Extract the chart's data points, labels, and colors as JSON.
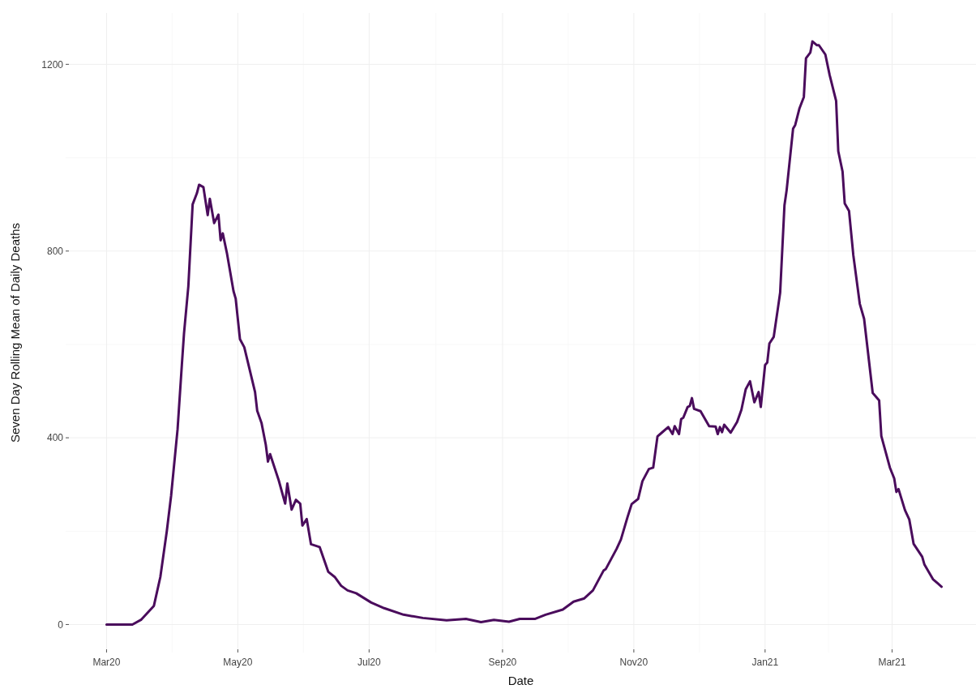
{
  "chart_data": {
    "type": "line",
    "xlabel": "Date",
    "ylabel": "Seven Day Rolling Mean of Daily Deaths",
    "xlim": [
      "2020-02-11",
      "2021-04-09"
    ],
    "ylim": [
      -60,
      1310
    ],
    "xticks": [
      {
        "value": "2020-03-01",
        "label": "Mar20"
      },
      {
        "value": "2020-05-01",
        "label": "May20"
      },
      {
        "value": "2020-07-01",
        "label": "Jul20"
      },
      {
        "value": "2020-09-01",
        "label": "Sep20"
      },
      {
        "value": "2020-11-01",
        "label": "Nov20"
      },
      {
        "value": "2021-01-01",
        "label": "Jan21"
      },
      {
        "value": "2021-03-01",
        "label": "Mar21"
      }
    ],
    "yticks": [
      0,
      400,
      800,
      1200
    ],
    "grid": true,
    "series": [
      {
        "color": "#4a0c5c",
        "x": [
          "2020-03-01",
          "2020-03-13",
          "2020-03-17",
          "2020-03-23",
          "2020-03-26",
          "2020-03-29",
          "2020-03-31",
          "2020-04-03",
          "2020-04-05",
          "2020-04-06",
          "2020-04-08",
          "2020-04-10",
          "2020-04-12",
          "2020-04-13",
          "2020-04-15",
          "2020-04-17",
          "2020-04-18",
          "2020-04-20",
          "2020-04-22",
          "2020-04-23",
          "2020-04-24",
          "2020-04-26",
          "2020-04-29",
          "2020-04-30",
          "2020-05-02",
          "2020-05-04",
          "2020-05-09",
          "2020-05-10",
          "2020-05-12",
          "2020-05-14",
          "2020-05-15",
          "2020-05-16",
          "2020-05-20",
          "2020-05-23",
          "2020-05-24",
          "2020-05-26",
          "2020-05-28",
          "2020-05-30",
          "2020-05-31",
          "2020-06-02",
          "2020-06-04",
          "2020-06-08",
          "2020-06-12",
          "2020-06-15",
          "2020-06-18",
          "2020-06-21",
          "2020-06-25",
          "2020-07-02",
          "2020-07-08",
          "2020-07-17",
          "2020-07-26",
          "2020-08-06",
          "2020-08-15",
          "2020-08-22",
          "2020-08-28",
          "2020-09-04",
          "2020-09-09",
          "2020-09-16",
          "2020-09-21",
          "2020-09-29",
          "2020-10-04",
          "2020-10-09",
          "2020-10-13",
          "2020-10-18",
          "2020-10-19",
          "2020-10-24",
          "2020-10-26",
          "2020-10-29",
          "2020-10-31",
          "2020-11-03",
          "2020-11-05",
          "2020-11-08",
          "2020-11-10",
          "2020-11-12",
          "2020-11-14",
          "2020-11-17",
          "2020-11-19",
          "2020-11-20",
          "2020-11-22",
          "2020-11-23",
          "2020-11-24",
          "2020-11-26",
          "2020-11-27",
          "2020-11-28",
          "2020-11-29",
          "2020-12-02",
          "2020-12-06",
          "2020-12-09",
          "2020-12-10",
          "2020-12-11",
          "2020-12-12",
          "2020-12-13",
          "2020-12-16",
          "2020-12-19",
          "2020-12-21",
          "2020-12-23",
          "2020-12-25",
          "2020-12-27",
          "2020-12-29",
          "2020-12-30",
          "2021-01-01",
          "2021-01-02",
          "2021-01-03",
          "2021-01-05",
          "2021-01-07",
          "2021-01-08",
          "2021-01-10",
          "2021-01-11",
          "2021-01-14",
          "2021-01-15",
          "2021-01-17",
          "2021-01-19",
          "2021-01-20",
          "2021-01-22",
          "2021-01-23",
          "2021-01-25",
          "2021-01-26",
          "2021-01-29",
          "2021-01-31",
          "2021-02-03",
          "2021-02-04",
          "2021-02-06",
          "2021-02-07",
          "2021-02-09",
          "2021-02-11",
          "2021-02-14",
          "2021-02-16",
          "2021-02-20",
          "2021-02-23",
          "2021-02-24",
          "2021-02-28",
          "2021-03-02",
          "2021-03-03",
          "2021-03-04",
          "2021-03-07",
          "2021-03-09",
          "2021-03-11",
          "2021-03-15",
          "2021-03-16",
          "2021-03-20",
          "2021-03-22",
          "2021-03-24"
        ],
        "values": [
          0,
          0,
          10,
          40,
          102,
          200,
          276,
          418,
          557,
          624,
          724,
          900,
          924,
          942,
          937,
          877,
          912,
          860,
          878,
          823,
          838,
          794,
          714,
          698,
          611,
          594,
          498,
          458,
          432,
          385,
          349,
          365,
          309,
          259,
          302,
          246,
          267,
          259,
          212,
          226,
          172,
          166,
          113,
          102,
          83,
          73,
          67,
          47,
          35,
          21,
          14,
          9,
          12,
          5,
          10,
          6,
          12,
          12,
          21,
          32,
          49,
          56,
          73,
          116,
          119,
          162,
          182,
          229,
          258,
          269,
          307,
          333,
          336,
          403,
          411,
          423,
          408,
          425,
          408,
          440,
          443,
          466,
          468,
          485,
          462,
          457,
          425,
          424,
          408,
          423,
          412,
          428,
          411,
          434,
          460,
          504,
          521,
          476,
          498,
          466,
          556,
          561,
          602,
          616,
          679,
          711,
          898,
          930,
          1062,
          1070,
          1106,
          1130,
          1213,
          1225,
          1249,
          1241,
          1241,
          1221,
          1177,
          1122,
          1014,
          970,
          902,
          886,
          791,
          687,
          655,
          496,
          480,
          404,
          336,
          313,
          284,
          290,
          245,
          225,
          173,
          145,
          129,
          97,
          89,
          81
        ]
      }
    ]
  }
}
